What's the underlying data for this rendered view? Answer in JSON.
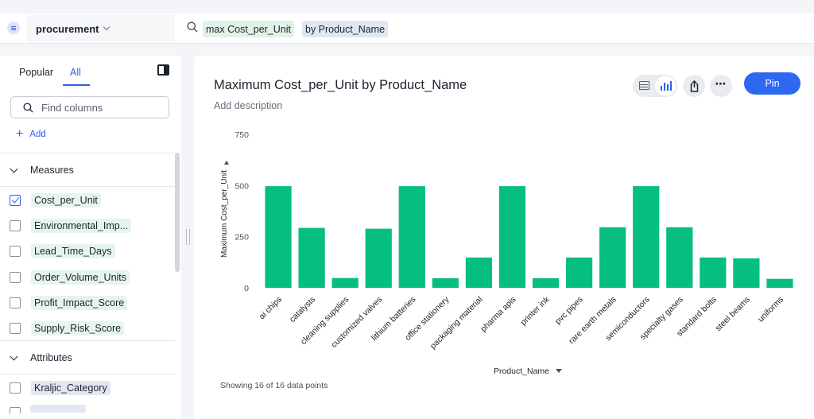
{
  "topbar": {
    "source_name": "procurement",
    "tokens": [
      "max Cost_per_Unit",
      "by Product_Name"
    ]
  },
  "left_panel": {
    "tabs": [
      "Popular",
      "All"
    ],
    "active_tab": "All",
    "search_placeholder": "Find columns",
    "add_label": "Add",
    "measures_heading": "Measures",
    "measures": [
      {
        "label": "Cost_per_Unit",
        "checked": true
      },
      {
        "label": "Environmental_Imp...",
        "checked": false
      },
      {
        "label": "Lead_Time_Days",
        "checked": false
      },
      {
        "label": "Order_Volume_Units",
        "checked": false
      },
      {
        "label": "Profit_Impact_Score",
        "checked": false
      },
      {
        "label": "Supply_Risk_Score",
        "checked": false
      }
    ],
    "attributes_heading": "Attributes",
    "attributes": [
      {
        "label": "Kraljic_Category",
        "checked": false
      }
    ]
  },
  "card": {
    "title": "Maximum Cost_per_Unit by Product_Name",
    "description_placeholder": "Add description",
    "pin_label": "Pin",
    "more_label": "⋯",
    "footer": "Showing 16 of 16 data points"
  },
  "chart_data": {
    "type": "bar",
    "title": "Maximum Cost_per_Unit by Product_Name",
    "xlabel": "Product_Name",
    "ylabel": "Maximum Cost_per_Unit",
    "ylim": [
      0,
      750
    ],
    "yticks": [
      0,
      250,
      500,
      750
    ],
    "grid": false,
    "bar_color": "#06bf7f",
    "categories": [
      "ai chips",
      "catalysts",
      "cleaning supplies",
      "customized valves",
      "lithium batteries",
      "office stationery",
      "packaging material",
      "pharma apis",
      "printer ink",
      "pvc pipes",
      "rare earth metals",
      "semiconductors",
      "specialty gases",
      "standard bolts",
      "steel beams",
      "uniforms"
    ],
    "values": [
      497,
      293,
      48,
      289,
      497,
      47,
      148,
      497,
      47,
      148,
      296,
      497,
      296,
      148,
      144,
      44
    ]
  },
  "colors": {
    "accent": "#2e5fe6",
    "pin": "#2e68f1",
    "bar": "#06bf7f"
  }
}
